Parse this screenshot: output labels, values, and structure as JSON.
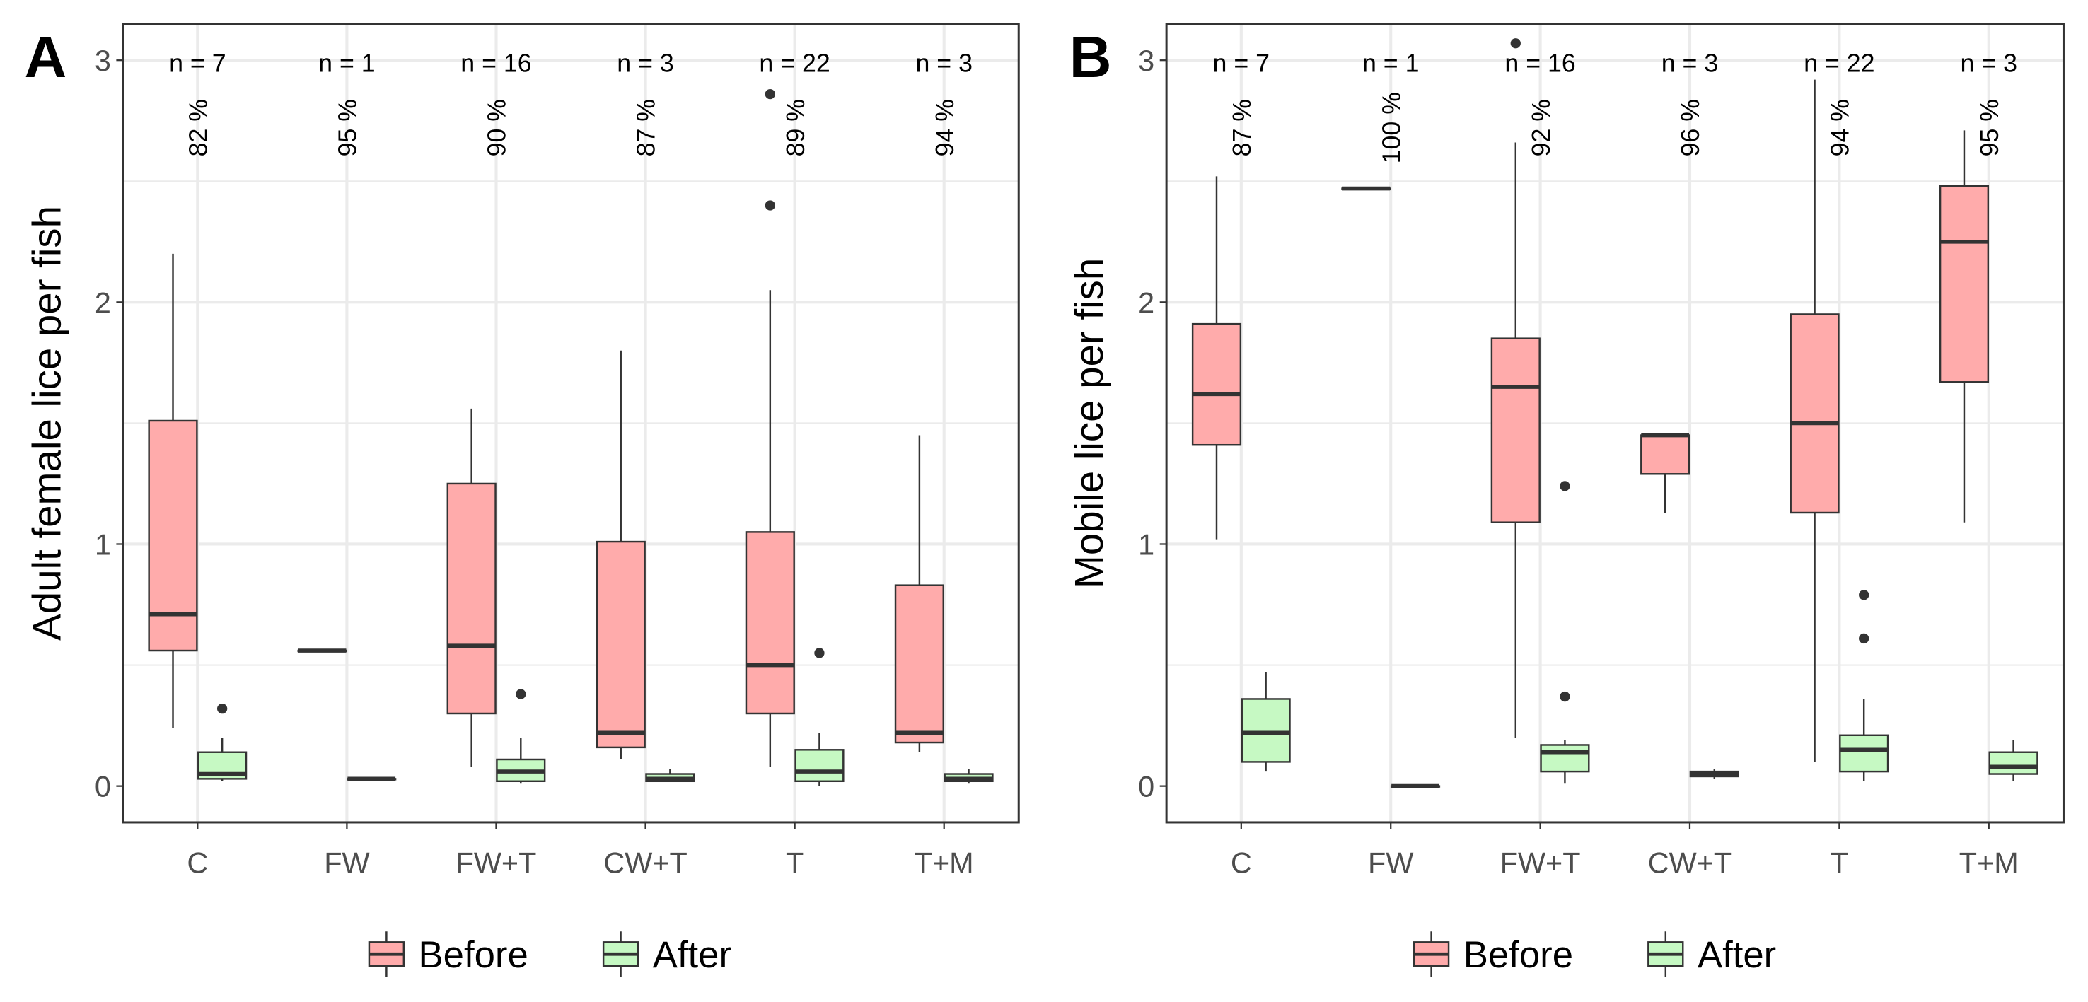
{
  "colors": {
    "before": "#FFABAB",
    "after": "#C6F9C3",
    "outline": "#333333",
    "grid": "#EBEBEB"
  },
  "legend": {
    "items": [
      "Before",
      "After"
    ],
    "placement": "bottom"
  },
  "chart_data": [
    {
      "type": "box",
      "panel_label": "A",
      "ylabel": "Adult female lice per fish",
      "ylim": [
        -0.15,
        3.15
      ],
      "yticks": [
        "0",
        "1",
        "2",
        "3"
      ],
      "grid": true,
      "categories": [
        "C",
        "FW",
        "FW+T",
        "CW+T",
        "T",
        "T+M"
      ],
      "n_labels": [
        "n = 7",
        "n = 1",
        "n = 16",
        "n = 3",
        "n = 22",
        "n = 3"
      ],
      "pct_labels": [
        "82 %",
        "95 %",
        "90 %",
        "87 %",
        "89 %",
        "94 %"
      ],
      "series": [
        {
          "name": "Before",
          "boxes": [
            {
              "low": 0.24,
              "q1": 0.56,
              "median": 0.71,
              "q3": 1.51,
              "high": 2.2,
              "outliers": []
            },
            {
              "low": 0.56,
              "q1": 0.56,
              "median": 0.56,
              "q3": 0.56,
              "high": 0.56,
              "outliers": []
            },
            {
              "low": 0.08,
              "q1": 0.3,
              "median": 0.58,
              "q3": 1.25,
              "high": 1.56,
              "outliers": []
            },
            {
              "low": 0.11,
              "q1": 0.16,
              "median": 0.22,
              "q3": 1.01,
              "high": 1.8,
              "outliers": []
            },
            {
              "low": 0.08,
              "q1": 0.3,
              "median": 0.5,
              "q3": 1.05,
              "high": 2.05,
              "outliers": [
                2.4,
                2.86
              ]
            },
            {
              "low": 0.14,
              "q1": 0.18,
              "median": 0.22,
              "q3": 0.83,
              "high": 1.45,
              "outliers": []
            }
          ]
        },
        {
          "name": "After",
          "boxes": [
            {
              "low": 0.02,
              "q1": 0.03,
              "median": 0.05,
              "q3": 0.14,
              "high": 0.2,
              "outliers": [
                0.32
              ]
            },
            {
              "low": 0.03,
              "q1": 0.03,
              "median": 0.03,
              "q3": 0.03,
              "high": 0.03,
              "outliers": []
            },
            {
              "low": 0.01,
              "q1": 0.02,
              "median": 0.06,
              "q3": 0.11,
              "high": 0.2,
              "outliers": [
                0.38
              ]
            },
            {
              "low": 0.02,
              "q1": 0.02,
              "median": 0.03,
              "q3": 0.05,
              "high": 0.07,
              "outliers": []
            },
            {
              "low": 0.0,
              "q1": 0.02,
              "median": 0.06,
              "q3": 0.15,
              "high": 0.22,
              "outliers": [
                0.55
              ]
            },
            {
              "low": 0.01,
              "q1": 0.02,
              "median": 0.03,
              "q3": 0.05,
              "high": 0.07,
              "outliers": []
            }
          ]
        }
      ]
    },
    {
      "type": "box",
      "panel_label": "B",
      "ylabel": "Mobile lice per fish",
      "ylim": [
        -0.15,
        3.15
      ],
      "yticks": [
        "0",
        "1",
        "2",
        "3"
      ],
      "grid": true,
      "categories": [
        "C",
        "FW",
        "FW+T",
        "CW+T",
        "T",
        "T+M"
      ],
      "n_labels": [
        "n = 7",
        "n = 1",
        "n = 16",
        "n = 3",
        "n = 22",
        "n = 3"
      ],
      "pct_labels": [
        "87 %",
        "100 %",
        "92 %",
        "96 %",
        "94 %",
        "95 %"
      ],
      "series": [
        {
          "name": "Before",
          "boxes": [
            {
              "low": 1.02,
              "q1": 1.41,
              "median": 1.62,
              "q3": 1.91,
              "high": 2.52,
              "outliers": []
            },
            {
              "low": 2.47,
              "q1": 2.47,
              "median": 2.47,
              "q3": 2.47,
              "high": 2.47,
              "outliers": []
            },
            {
              "low": 0.2,
              "q1": 1.09,
              "median": 1.65,
              "q3": 1.85,
              "high": 2.66,
              "outliers": [
                3.07
              ]
            },
            {
              "low": 1.13,
              "q1": 1.29,
              "median": 1.45,
              "q3": 1.45,
              "high": 1.45,
              "outliers": []
            },
            {
              "low": 0.1,
              "q1": 1.13,
              "median": 1.5,
              "q3": 1.95,
              "high": 2.92,
              "outliers": []
            },
            {
              "low": 1.09,
              "q1": 1.67,
              "median": 2.25,
              "q3": 2.48,
              "high": 2.71,
              "outliers": []
            }
          ]
        },
        {
          "name": "After",
          "boxes": [
            {
              "low": 0.06,
              "q1": 0.1,
              "median": 0.22,
              "q3": 0.36,
              "high": 0.47,
              "outliers": []
            },
            {
              "low": 0.0,
              "q1": 0.0,
              "median": 0.0,
              "q3": 0.0,
              "high": 0.0,
              "outliers": []
            },
            {
              "low": 0.01,
              "q1": 0.06,
              "median": 0.14,
              "q3": 0.17,
              "high": 0.19,
              "outliers": [
                0.37,
                1.24
              ]
            },
            {
              "low": 0.03,
              "q1": 0.04,
              "median": 0.05,
              "q3": 0.06,
              "high": 0.07,
              "outliers": []
            },
            {
              "low": 0.02,
              "q1": 0.06,
              "median": 0.15,
              "q3": 0.21,
              "high": 0.36,
              "outliers": [
                0.61,
                0.79
              ]
            },
            {
              "low": 0.02,
              "q1": 0.05,
              "median": 0.08,
              "q3": 0.14,
              "high": 0.19,
              "outliers": []
            }
          ]
        }
      ]
    }
  ]
}
